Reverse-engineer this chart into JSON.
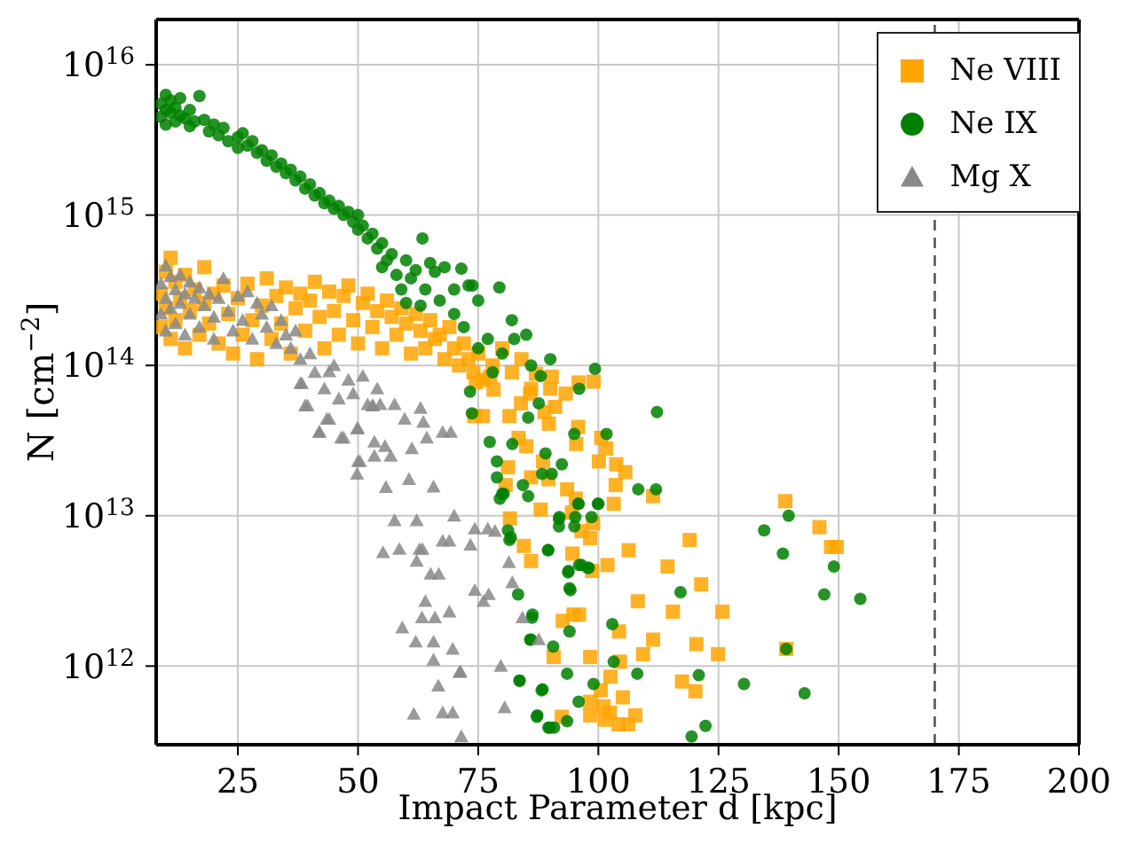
{
  "chart_data": {
    "type": "scatter",
    "xlabel": "Impact Parameter d [kpc]",
    "ylabel": "N [cm$^{−2}$]",
    "xlim": [
      8,
      200
    ],
    "xticks": [
      25,
      50,
      75,
      100,
      125,
      150,
      175,
      200
    ],
    "ylim": [
      300000000000.0,
      2e+16
    ],
    "yticks": [
      {
        "value": 1000000000000.0,
        "label": "10$^{12}$"
      },
      {
        "value": 10000000000000.0,
        "label": "10$^{13}$"
      },
      {
        "value": 100000000000000.0,
        "label": "10$^{14}$"
      },
      {
        "value": 1000000000000000.0,
        "label": "10$^{15}$"
      },
      {
        "value": 1e+16,
        "label": "10$^{16}$"
      }
    ],
    "log": "y",
    "grid": true,
    "legend": "top right",
    "ref_lines": [
      {
        "axis": "x",
        "value": 170,
        "color": "#555555",
        "line_style": "dashed"
      }
    ],
    "series": [
      {
        "name": "Ne VIII",
        "color": "#ffa500",
        "marker": "square",
        "x": [
          9,
          9,
          10,
          10,
          11,
          11,
          12,
          12,
          13,
          14,
          14,
          15,
          16,
          17,
          18,
          18,
          19,
          20,
          21,
          22,
          23,
          24,
          25,
          26,
          27,
          28,
          29,
          30,
          31,
          32,
          33,
          34,
          35,
          36,
          37,
          38,
          39,
          40,
          41,
          42,
          43,
          44,
          45,
          46,
          47,
          48,
          49,
          50,
          51,
          52,
          53,
          54,
          55,
          56,
          57,
          58,
          59,
          60,
          61,
          62,
          63,
          64,
          65,
          66,
          67,
          68,
          69,
          70,
          71,
          72,
          73,
          74,
          75,
          76,
          78,
          80,
          82,
          84,
          86,
          90,
          99,
          138.9,
          146,
          148.4,
          149.6,
          119,
          114.4,
          121.4,
          125.8,
          115.5,
          108.2,
          139.1,
          124.9,
          120.4,
          111.4,
          109.3,
          117.4,
          120.2,
          105.1,
          107.7,
          106.2,
          104.2,
          101.4,
          102.4,
          101.1,
          100.5,
          102.5,
          98.3,
          98.3,
          92.4,
          104.5,
          104.3,
          98.3,
          90.7,
          92.6,
          96,
          94.8,
          101.9,
          98.7,
          94.6,
          106.3,
          86,
          84.5,
          96.5,
          98.3,
          98.9,
          94.5,
          81.6,
          88,
          95.3,
          103.2,
          93.5,
          111.4,
          103.6,
          89.6,
          80.7,
          86,
          105.6,
          81.2,
          103.7,
          88.5,
          100.1,
          101.6,
          85,
          95.4,
          100.6,
          83.4,
          95.8,
          81.5,
          89.7,
          91,
          83.9,
          93.2,
          88.8,
          85.8,
          95.9,
          90.3,
          87,
          76,
          74.2,
          78.2,
          74.5,
          77.5
        ],
        "values": [
          300000000000000.0,
          180000000000000.0,
          420000000000000.0,
          240000000000000.0,
          520000000000000.0,
          150000000000000.0,
          360000000000000.0,
          200000000000000.0,
          280000000000000.0,
          400000000000000.0,
          130000000000000.0,
          230000000000000.0,
          320000000000000.0,
          160000000000000.0,
          450000000000000.0,
          260000000000000.0,
          190000000000000.0,
          300000000000000.0,
          140000000000000.0,
          340000000000000.0,
          220000000000000.0,
          120000000000000.0,
          280000000000000.0,
          160000000000000.0,
          350000000000000.0,
          200000000000000.0,
          110000000000000.0,
          250000000000000.0,
          380000000000000.0,
          150000000000000.0,
          290000000000000.0,
          190000000000000.0,
          330000000000000.0,
          120000000000000.0,
          240000000000000.0,
          300000000000000.0,
          170000000000000.0,
          270000000000000.0,
          360000000000000.0,
          210000000000000.0,
          130000000000000.0,
          310000000000000.0,
          230000000000000.0,
          160000000000000.0,
          290000000000000.0,
          340000000000000.0,
          200000000000000.0,
          140000000000000.0,
          260000000000000.0,
          300000000000000.0,
          180000000000000.0,
          230000000000000.0,
          130000000000000.0,
          270000000000000.0,
          210000000000000.0,
          160000000000000.0,
          240000000000000.0,
          190000000000000.0,
          120000000000000.0,
          220000000000000.0,
          170000000000000.0,
          130000000000000.0,
          200000000000000.0,
          150000000000000.0,
          160000000000000.0,
          110000000000000.0,
          180000000000000.0,
          130000000000000.0,
          100000000000000.0,
          140000000000000.0,
          110000000000000.0,
          90000000000000.0,
          120000000000000.0,
          80000000000000.0,
          100000000000000.0,
          130000000000000.0,
          90000000000000.0,
          110000000000000.0,
          70000000000000.0,
          70000000000000.0,
          78000000000000.0,
          12500000000000.0,
          8400000000000.0,
          6200000000000.0,
          6200000000000.0,
          6900000000000.0,
          4600000000000.0,
          3500000000000.0,
          2300000000000.0,
          2300000000000.0,
          2700000000000.0,
          1300000000000.0,
          1200000000000.0,
          1400000000000.0,
          1500000000000.0,
          1200000000000.0,
          790000000000.0,
          680000000000.0,
          620000000000.0,
          470000000000.0,
          410000000000.0,
          410000000000.0,
          440000000000.0,
          490000000000.0,
          540000000000.0,
          690000000000.0,
          850000000000.0,
          580000000000.0,
          470000000000.0,
          460000000000.0,
          1070000000000.0,
          1700000000000.0,
          1150000000000.0,
          1150000000000.0,
          2000000000000.0,
          2200000000000.0,
          2200000000000.0,
          4700000000000.0,
          4300000000000.0,
          5600000000000.0,
          5900000000000.0,
          5000000000000.0,
          6300000000000.0,
          7900000000000.0,
          7100000000000.0,
          8900000000000.0,
          10500000000000.0,
          9600000000000.0,
          11000000000000.0,
          13000000000000.0,
          12000000000000.0,
          15000000000000.0,
          13500000000000.0,
          16000000000000.0,
          17500000000000.0,
          16000000000000.0,
          18000000000000.0,
          19500000000000.0,
          21000000000000.0,
          22000000000000.0,
          23000000000000.0,
          23000000000000.0,
          28000000000000.0,
          29000000000000.0,
          30000000000000.0,
          33000000000000.0,
          33000000000000.0,
          39000000000000.0,
          46000000000000.0,
          41000000000000.0,
          53000000000000.0,
          56000000000000.0,
          65000000000000.0,
          49000000000000.0,
          65000000000000.0,
          77000000000000.0,
          84000000000000.0,
          88000000000000.0,
          46000000000000.0,
          46000000000000.0,
          69000000000000.0,
          77000000000000.0,
          84000000000000.0
        ]
      },
      {
        "name": "Ne IX",
        "color": "#008000",
        "marker": "circle",
        "x": [
          9,
          9,
          10,
          10,
          10,
          11,
          11,
          12,
          12,
          13,
          13,
          14,
          15,
          15,
          16,
          17,
          18,
          19,
          20,
          21,
          22,
          23,
          25,
          25,
          26,
          27,
          28,
          29,
          30,
          31,
          32,
          33,
          34,
          35,
          36,
          37,
          38,
          39,
          40,
          41,
          42,
          43,
          44,
          45,
          46,
          47,
          48,
          49,
          50,
          50,
          51,
          52,
          53,
          54,
          55,
          55,
          56,
          57,
          58,
          59,
          60,
          60,
          61,
          62,
          63,
          63.4,
          64,
          65,
          66,
          67,
          68,
          70,
          70,
          71.5,
          72,
          73,
          73.8,
          75,
          75,
          77,
          78,
          79.4,
          80,
          82,
          82.5,
          85,
          86,
          88,
          90,
          96,
          99.3,
          112.2,
          112,
          108.3,
          134.5,
          139.6,
          138.4,
          149,
          147,
          154.5,
          139.1,
          130.3,
          142.9,
          122.3,
          119.4,
          120.9,
          117.1,
          108.1,
          102.9,
          103.2,
          99,
          95.9,
          93.5,
          89.6,
          90.8,
          87.3,
          88.4,
          83.6,
          94,
          85.8,
          86.2,
          94.2,
          83.3,
          93.7,
          97.8,
          96.5,
          89.5,
          81.8,
          91.8,
          91.9,
          98.6,
          100,
          95.8,
          85.4,
          79.5,
          80.3,
          84.3,
          88.3,
          90.3,
          78.9,
          78.9,
          92.4,
          89,
          82.1,
          77.4,
          95,
          101.7,
          73.7,
          85.4,
          87.6,
          73.3,
          80,
          81.2,
          81.5,
          86.3,
          86,
          83.6,
          87.2,
          89.9,
          88.2,
          90.6,
          93.5,
          93.8,
          94,
          89.6,
          96,
          98,
          95.2,
          95,
          91.8,
          95.9,
          99.9
        ],
        "values": [
          5500000000000000.0,
          4500000000000000.0,
          6300000000000000.0,
          5000000000000000.0,
          4000000000000000.0,
          5800000000000000.0,
          4800000000000000.0,
          5200000000000000.0,
          4200000000000000.0,
          6000000000000000.0,
          4600000000000000.0,
          4400000000000000.0,
          5000000000000000.0,
          3900000000000000.0,
          4200000000000000.0,
          6200000000000000.0,
          4300000000000000.0,
          3600000000000000.0,
          4000000000000000.0,
          3400000000000000.0,
          3800000000000000.0,
          3100000000000000.0,
          3300000000000000.0,
          2800000000000000.0,
          3500000000000000.0,
          2900000000000000.0,
          3100000000000000.0,
          2600000000000000.0,
          2700000000000000.0,
          2300000000000000.0,
          2500000000000000.0,
          2100000000000000.0,
          2200000000000000.0,
          1900000000000000.0,
          2000000000000000.0,
          1700000000000000.0,
          1800000000000000.0,
          1500000000000000.0,
          1600000000000000.0,
          1350000000000000.0,
          1400000000000000.0,
          1200000000000000.0,
          1250000000000000.0,
          1100000000000000.0,
          1150000000000000.0,
          1000000000000000.0,
          1050000000000000.0,
          900000000000000.0,
          1000000000000000.0,
          800000000000000.0,
          850000000000000.0,
          700000000000000.0,
          750000000000000.0,
          600000000000000.0,
          650000000000000.0,
          450000000000000.0,
          500000000000000.0,
          550000000000000.0,
          400000000000000.0,
          320000000000000.0,
          500000000000000.0,
          260000000000000.0,
          380000000000000.0,
          430000000000000.0,
          250000000000000.0,
          700000000000000.0,
          320000000000000.0,
          480000000000000.0,
          420000000000000.0,
          270000000000000.0,
          450000000000000.0,
          320000000000000.0,
          220000000000000.0,
          440000000000000.0,
          180000000000000.0,
          340000000000000.0,
          340000000000000.0,
          130000000000000.0,
          270000000000000.0,
          150000000000000.0,
          90000000000000.0,
          330000000000000.0,
          120000000000000.0,
          200000000000000.0,
          150000000000000.0,
          160000000000000.0,
          100000000000000.0,
          85000000000000.0,
          110000000000000.0,
          70000000000000.0,
          95000000000000.0,
          49000000000000.0,
          15000000000000.0,
          15000000000000.0,
          8000000000000.0,
          10000000000000.0,
          5600000000000.0,
          4600000000000.0,
          3000000000000.0,
          2800000000000.0,
          1300000000000.0,
          760000000000.0,
          660000000000.0,
          400000000000.0,
          340000000000.0,
          870000000000.0,
          3100000000000.0,
          890000000000.0,
          1900000000000.0,
          1070000000000.0,
          760000000000.0,
          580000000000.0,
          430000000000.0,
          390000000000.0,
          390000000000.0,
          470000000000.0,
          700000000000.0,
          800000000000.0,
          1700000000000.0,
          1500000000000.0,
          2100000000000.0,
          3200000000000.0,
          3000000000000.0,
          4200000000000.0,
          4500000000000.0,
          4700000000000.0,
          5900000000000.0,
          7200000000000.0,
          8500000000000.0,
          9800000000000.0,
          9800000000000.0,
          12000000000000.0,
          12000000000000.0,
          13500000000000.0,
          13000000000000.0,
          14000000000000.0,
          16000000000000.0,
          19000000000000.0,
          19000000000000.0,
          18000000000000.0,
          23000000000000.0,
          22000000000000.0,
          26000000000000.0,
          30000000000000.0,
          31000000000000.0,
          35000000000000.0,
          35000000000000.0,
          48000000000000.0,
          45000000000000.0,
          56000000000000.0,
          67000000000000.0,
          14000000000000.0,
          8000000000000.0,
          6900000000000.0,
          2200000000000.0,
          1500000000000.0,
          800000000000.0,
          460000000000.0,
          390000000000.0,
          690000000000.0,
          1350000000000.0,
          890000000000.0,
          4300000000000.0,
          3300000000000.0,
          5900000000000.0,
          4700000000000.0,
          4500000000000.0,
          9800000000000.0,
          8500000000000.0,
          9500000000000.0,
          12000000000000.0,
          12000000000000.0
        ]
      },
      {
        "name": "Mg X",
        "color": "#888888",
        "marker": "triangle",
        "x": [
          9,
          9,
          10,
          10,
          10,
          11,
          11,
          12,
          12,
          13,
          13,
          14,
          14,
          15,
          15,
          16,
          17,
          17,
          18,
          19,
          20,
          20,
          21,
          22,
          23,
          24,
          25,
          26,
          27,
          28,
          29,
          30,
          31,
          32,
          33,
          34,
          35,
          36,
          37,
          38,
          38,
          39,
          40,
          41,
          42,
          43,
          44,
          44,
          45,
          46,
          47,
          48,
          49,
          50,
          50,
          51,
          52,
          53,
          54,
          38.3,
          39.5,
          43.5,
          41.9,
          46.5,
          49.8,
          53.1,
          54.6,
          57.6,
          59.7,
          63,
          63.6,
          53.4,
          55.6,
          56.8,
          53.4,
          50.4,
          49.8,
          55.8,
          60.6,
          61.2,
          65.7,
          64.3,
          67.6,
          69.3,
          57.6,
          62.2,
          70,
          74.3,
          77,
          78.5,
          55.2,
          58.6,
          62.8,
          63.4,
          67.6,
          69,
          73.4,
          62.2,
          65.1,
          66.8,
          81.4,
          74.3,
          76.1,
          64,
          69,
          63.3,
          66,
          59.2,
          82.1,
          84.2,
          62,
          65.7,
          65.7,
          71.1,
          79.7,
          66.7,
          61.6,
          67.6,
          69.7,
          80.5,
          71.5,
          69.7,
          87.6,
          71.3,
          77.2
        ],
        "values": [
          350000000000000.0,
          220000000000000.0,
          460000000000000.0,
          280000000000000.0,
          170000000000000.0,
          390000000000000.0,
          240000000000000.0,
          320000000000000.0,
          190000000000000.0,
          400000000000000.0,
          260000000000000.0,
          300000000000000.0,
          160000000000000.0,
          360000000000000.0,
          220000000000000.0,
          280000000000000.0,
          330000000000000.0,
          180000000000000.0,
          250000000000000.0,
          300000000000000.0,
          210000000000000.0,
          150000000000000.0,
          280000000000000.0,
          380000000000000.0,
          230000000000000.0,
          170000000000000.0,
          290000000000000.0,
          200000000000000.0,
          310000000000000.0,
          150000000000000.0,
          260000000000000.0,
          220000000000000.0,
          180000000000000.0,
          250000000000000.0,
          140000000000000.0,
          200000000000000.0,
          160000000000000.0,
          130000000000000.0,
          170000000000000.0,
          110000000000000.0,
          76000000000000.0,
          54000000000000.0,
          120000000000000.0,
          90000000000000.0,
          36000000000000.0,
          70000000000000.0,
          91000000000000.0,
          44000000000000.0,
          100000000000000.0,
          60000000000000.0,
          33000000000000.0,
          80000000000000.0,
          65000000000000.0,
          38000000000000.0,
          23000000000000.0,
          85000000000000.0,
          55000000000000.0,
          54000000000000.0,
          70000000000000.0,
          76000000000000.0,
          54000000000000.0,
          44000000000000.0,
          36000000000000.0,
          33000000000000.0,
          38000000000000.0,
          54000000000000.0,
          55000000000000.0,
          55000000000000.0,
          44000000000000.0,
          52000000000000.0,
          42000000000000.0,
          31000000000000.0,
          29000000000000.0,
          25000000000000.0,
          25000000000000.0,
          23000000000000.0,
          19000000000000.0,
          15500000000000.0,
          17500000000000.0,
          28000000000000.0,
          15600000000000.0,
          33000000000000.0,
          36000000000000.0,
          36000000000000.0,
          9300000000000.0,
          9300000000000.0,
          10000000000000.0,
          8200000000000.0,
          8200000000000.0,
          7900000000000.0,
          5700000000000.0,
          6000000000000.0,
          6000000000000.0,
          6000000000000.0,
          6800000000000.0,
          6800000000000.0,
          6400000000000.0,
          5000000000000.0,
          4100000000000.0,
          4100000000000.0,
          4900000000000.0,
          3200000000000.0,
          2700000000000.0,
          2700000000000.0,
          2300000000000.0,
          2100000000000.0,
          2100000000000.0,
          1800000000000.0,
          3600000000000.0,
          2100000000000.0,
          1450000000000.0,
          1450000000000.0,
          1100000000000.0,
          910000000000.0,
          1000000000000.0,
          740000000000.0,
          480000000000.0,
          490000000000.0,
          490000000000.0,
          530000000000.0,
          340000000000.0,
          1300000000000.0,
          1500000000000.0,
          920000000000.0,
          3000000000000.0
        ]
      }
    ]
  }
}
